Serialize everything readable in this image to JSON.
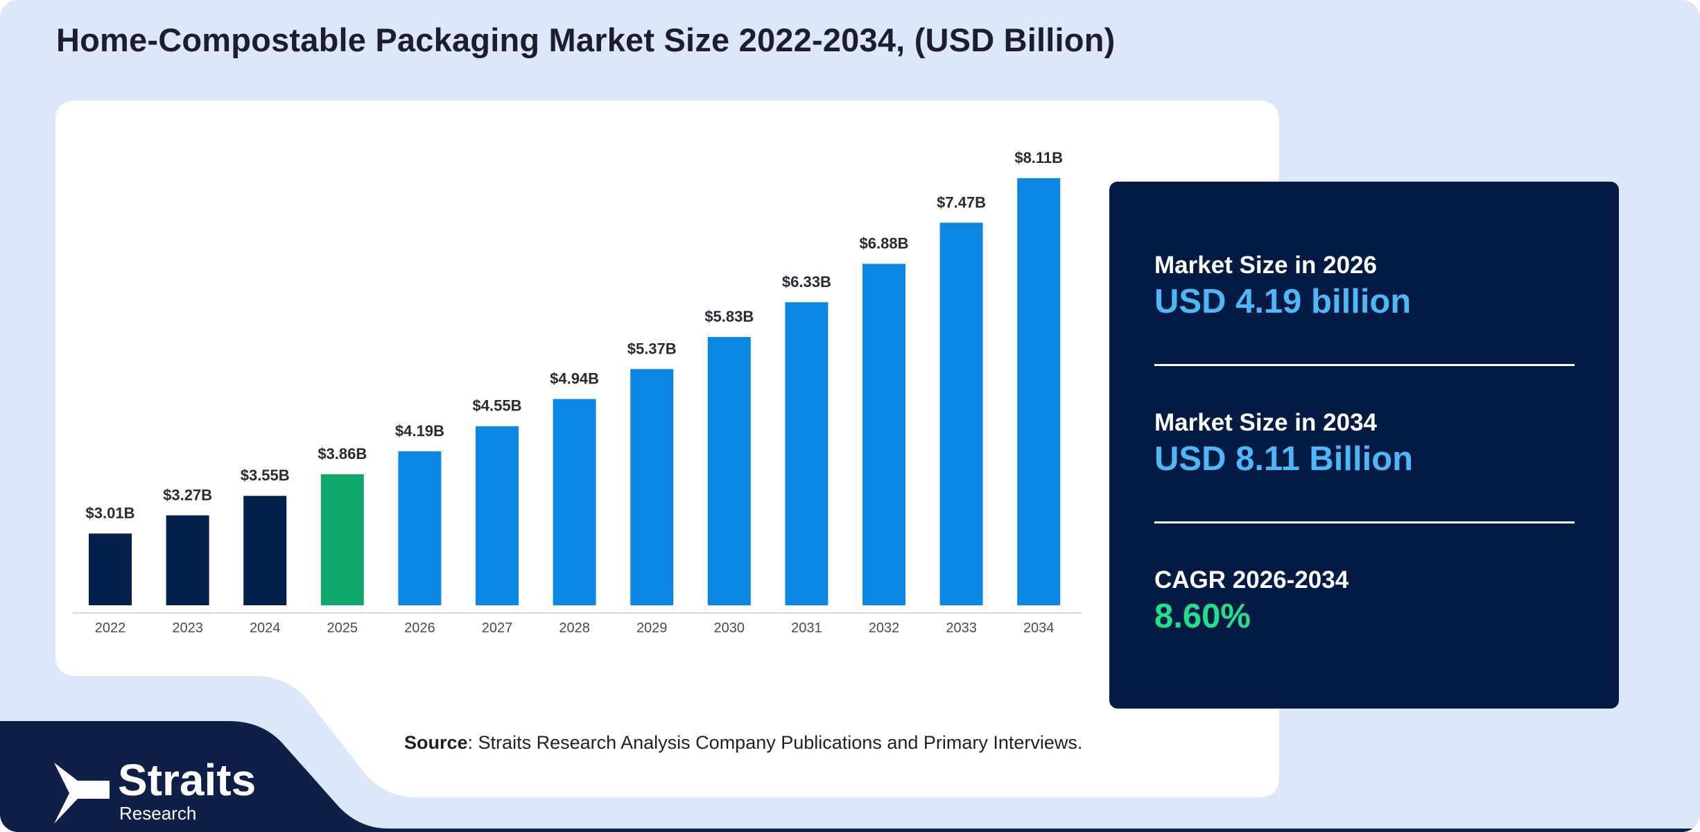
{
  "title": "Home-Compostable Packaging Market Size 2022-2034, (USD Billion)",
  "colors": {
    "historic": "#03204a",
    "base_year": "#10a86a",
    "forecast": "#0c86e3",
    "page_background": "#dce8fa",
    "panel": "#031a45",
    "highlight_blue": "#4db8f5",
    "highlight_green": "#22e08a"
  },
  "chart_data": {
    "type": "bar",
    "title": "",
    "xlabel": "",
    "ylabel": "",
    "categories": [
      "2022",
      "2023",
      "2024",
      "2025",
      "2026",
      "2027",
      "2028",
      "2029",
      "2030",
      "2031",
      "2032",
      "2033",
      "2034"
    ],
    "values": [
      3.01,
      3.27,
      3.55,
      3.86,
      4.19,
      4.55,
      4.94,
      5.37,
      5.83,
      6.33,
      6.88,
      7.47,
      8.11
    ],
    "value_labels": [
      "$3.01B",
      "$3.27B",
      "$3.55B",
      "$3.86B",
      "$4.19B",
      "$4.55B",
      "$4.94B",
      "$5.37B",
      "$5.83B",
      "$6.33B",
      "$6.88B",
      "$7.47B",
      "$8.11B"
    ],
    "bar_roles": [
      "historic",
      "historic",
      "historic",
      "base_year",
      "forecast",
      "forecast",
      "forecast",
      "forecast",
      "forecast",
      "forecast",
      "forecast",
      "forecast",
      "forecast"
    ],
    "grid": false,
    "legend": "none"
  },
  "stats": [
    {
      "label": "Market Size in 2026",
      "value": "USD 4.19 billion",
      "color": "#4db8f5"
    },
    {
      "label": "Market Size in 2034",
      "value": "USD 8.11 Billion",
      "color": "#4db8f5"
    },
    {
      "label": "CAGR 2026-2034",
      "value": "8.60%",
      "color": "#22e08a"
    }
  ],
  "source": {
    "bold": "Source",
    "text": ": Straits Research Analysis Company Publications and Primary Interviews."
  },
  "logo": {
    "icon": "straits-arrow-icon",
    "name": "Straits",
    "sub": "Research"
  }
}
